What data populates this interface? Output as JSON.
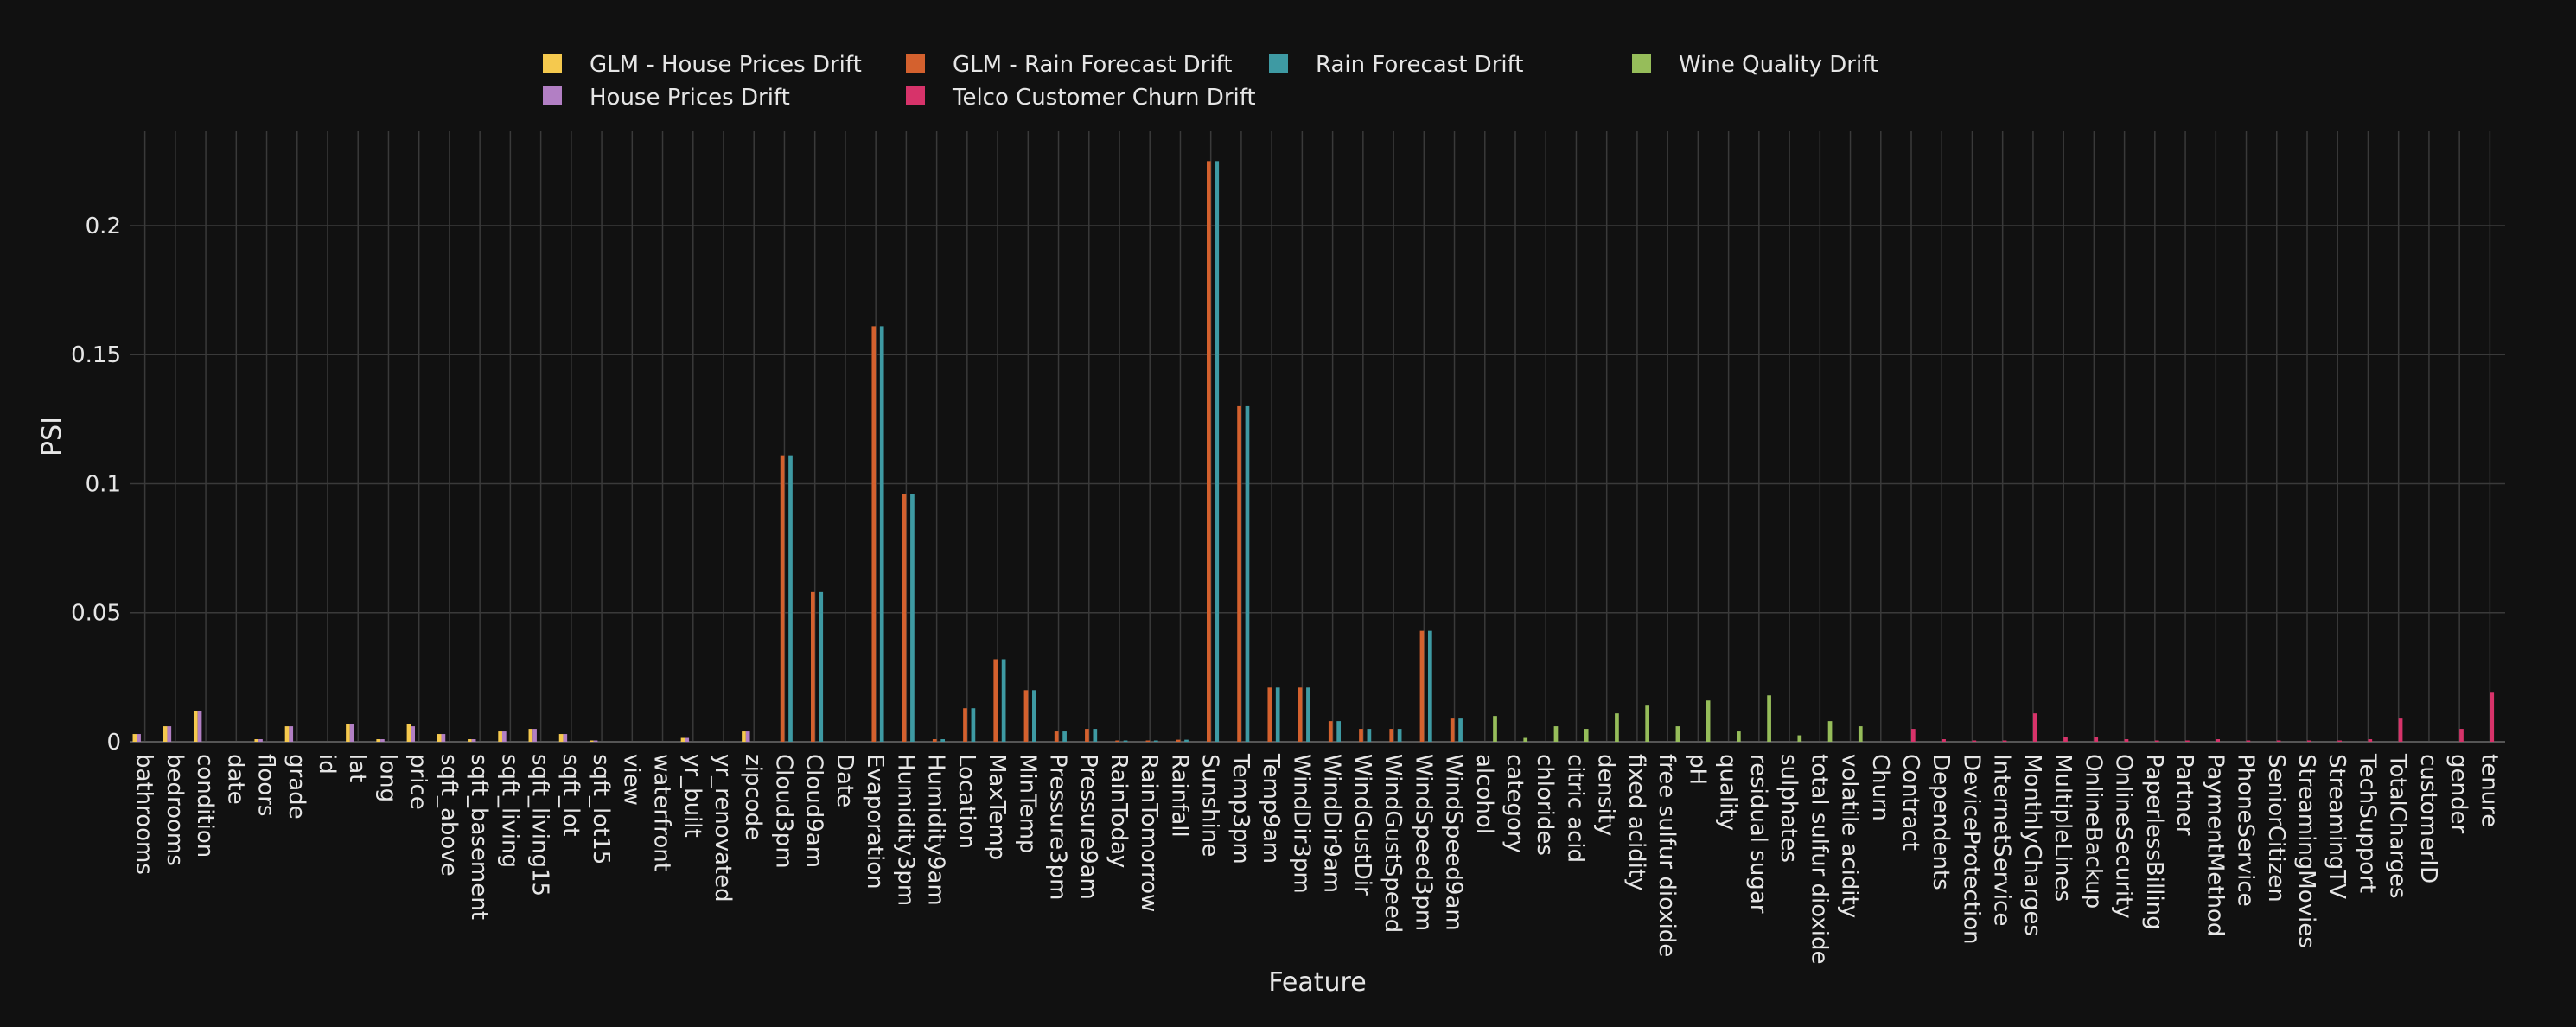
{
  "chart_data": {
    "type": "bar",
    "title": "",
    "xlabel": "Feature",
    "ylabel": "PSI",
    "ylim": [
      0,
      0.2365
    ],
    "yticks": [
      0,
      0.05,
      0.1,
      0.15,
      0.2
    ],
    "ytick_labels": [
      "0",
      "0.05",
      "0.1",
      "0.15",
      "0.2"
    ],
    "grid": true,
    "legend_position": "top",
    "categories": [
      "bathrooms",
      "bedrooms",
      "condition",
      "date",
      "floors",
      "grade",
      "id",
      "lat",
      "long",
      "price",
      "sqft_above",
      "sqft_basement",
      "sqft_living",
      "sqft_living15",
      "sqft_lot",
      "sqft_lot15",
      "view",
      "waterfront",
      "yr_built",
      "yr_renovated",
      "zipcode",
      "Cloud3pm",
      "Cloud9am",
      "Date",
      "Evaporation",
      "Humidity3pm",
      "Humidity9am",
      "Location",
      "MaxTemp",
      "MinTemp",
      "Pressure3pm",
      "Pressure9am",
      "RainToday",
      "RainTomorrow",
      "Rainfall",
      "Sunshine",
      "Temp3pm",
      "Temp9am",
      "WindDir3pm",
      "WindDir9am",
      "WindGustDir",
      "WindGustSpeed",
      "WindSpeed3pm",
      "WindSpeed9am",
      "alcohol",
      "category",
      "chlorides",
      "citric acid",
      "density",
      "fixed acidity",
      "free sulfur dioxide",
      "pH",
      "quality",
      "residual sugar",
      "sulphates",
      "total sulfur dioxide",
      "volatile acidity",
      "Churn",
      "Contract",
      "Dependents",
      "DeviceProtection",
      "InternetService",
      "MonthlyCharges",
      "MultipleLines",
      "OnlineBackup",
      "OnlineSecurity",
      "PaperlessBilling",
      "Partner",
      "PaymentMethod",
      "PhoneService",
      "SeniorCitizen",
      "StreamingMovies",
      "StreamingTV",
      "TechSupport",
      "TotalCharges",
      "customerID",
      "gender",
      "tenure"
    ],
    "series": [
      {
        "name": "GLM - House Prices Drift",
        "color": "#f5c94e",
        "values": [
          0.003,
          0.006,
          0.012,
          0,
          0.001,
          0.006,
          0,
          0.007,
          0.001,
          0.007,
          0.003,
          0.001,
          0.004,
          0.005,
          0.003,
          0.0005,
          0,
          0,
          0.0015,
          0,
          0.004,
          0,
          0,
          0,
          0,
          0,
          0,
          0,
          0,
          0,
          0,
          0,
          0,
          0,
          0,
          0,
          0,
          0,
          0,
          0,
          0,
          0,
          0,
          0,
          0,
          0,
          0,
          0,
          0,
          0,
          0,
          0,
          0,
          0,
          0,
          0,
          0,
          0,
          0,
          0,
          0,
          0,
          0,
          0,
          0,
          0,
          0,
          0,
          0,
          0,
          0,
          0,
          0,
          0,
          0,
          0,
          0,
          0
        ]
      },
      {
        "name": "House Prices Drift",
        "color": "#b27fc4",
        "values": [
          0.003,
          0.006,
          0.012,
          0,
          0.001,
          0.006,
          0,
          0.007,
          0.001,
          0.006,
          0.003,
          0.001,
          0.004,
          0.005,
          0.003,
          0.0005,
          0,
          0,
          0.0015,
          0,
          0.004,
          0,
          0,
          0,
          0,
          0,
          0,
          0,
          0,
          0,
          0,
          0,
          0,
          0,
          0,
          0,
          0,
          0,
          0,
          0,
          0,
          0,
          0,
          0,
          0,
          0,
          0,
          0,
          0,
          0,
          0,
          0,
          0,
          0,
          0,
          0,
          0,
          0,
          0,
          0,
          0,
          0,
          0,
          0,
          0,
          0,
          0,
          0,
          0,
          0,
          0,
          0,
          0,
          0,
          0,
          0,
          0,
          0
        ]
      },
      {
        "name": "GLM - Rain Forecast Drift",
        "color": "#d4612e",
        "values": [
          0,
          0,
          0,
          0,
          0,
          0,
          0,
          0,
          0,
          0,
          0,
          0,
          0,
          0,
          0,
          0,
          0,
          0,
          0,
          0,
          0,
          0.111,
          0.058,
          0,
          0.161,
          0.096,
          0.001,
          0.013,
          0.032,
          0.02,
          0.004,
          0.005,
          0.0005,
          0.0005,
          0.0008,
          0.225,
          0.13,
          0.021,
          0.021,
          0.008,
          0.005,
          0.005,
          0.043,
          0.009,
          0,
          0,
          0,
          0,
          0,
          0,
          0,
          0,
          0,
          0,
          0,
          0,
          0,
          0,
          0,
          0,
          0,
          0,
          0,
          0,
          0,
          0,
          0,
          0,
          0,
          0,
          0,
          0,
          0,
          0,
          0,
          0,
          0,
          0
        ]
      },
      {
        "name": "Telco Customer Churn Drift",
        "color": "#d7336a",
        "values": [
          0,
          0,
          0,
          0,
          0,
          0,
          0,
          0,
          0,
          0,
          0,
          0,
          0,
          0,
          0,
          0,
          0,
          0,
          0,
          0,
          0,
          0,
          0,
          0,
          0,
          0,
          0,
          0,
          0,
          0,
          0,
          0,
          0,
          0,
          0,
          0,
          0,
          0,
          0,
          0,
          0,
          0,
          0,
          0,
          0,
          0,
          0,
          0,
          0,
          0,
          0,
          0,
          0,
          0,
          0,
          0,
          0,
          0,
          0.005,
          0.001,
          0.0005,
          0.0005,
          0.011,
          0.002,
          0.002,
          0.001,
          0.0005,
          0.0005,
          0.001,
          0.0005,
          0.0005,
          0.0005,
          0.0005,
          0.001,
          0.009,
          0,
          0.005,
          0.019
        ]
      },
      {
        "name": "Rain Forecast Drift",
        "color": "#3e9aa3",
        "values": [
          0,
          0,
          0,
          0,
          0,
          0,
          0,
          0,
          0,
          0,
          0,
          0,
          0,
          0,
          0,
          0,
          0,
          0,
          0,
          0,
          0,
          0.111,
          0.058,
          0,
          0.161,
          0.096,
          0.001,
          0.013,
          0.032,
          0.02,
          0.004,
          0.005,
          0.0005,
          0.0005,
          0.0008,
          0.225,
          0.13,
          0.021,
          0.021,
          0.008,
          0.005,
          0.005,
          0.043,
          0.009,
          0,
          0,
          0,
          0,
          0,
          0,
          0,
          0,
          0,
          0,
          0,
          0,
          0,
          0,
          0,
          0,
          0,
          0,
          0,
          0,
          0,
          0,
          0,
          0,
          0,
          0,
          0,
          0,
          0,
          0,
          0,
          0,
          0,
          0
        ]
      },
      {
        "name": "Wine Quality Drift",
        "color": "#96bd5a",
        "values": [
          0,
          0,
          0,
          0,
          0,
          0,
          0,
          0,
          0,
          0,
          0,
          0,
          0,
          0,
          0,
          0,
          0,
          0,
          0,
          0,
          0,
          0,
          0,
          0,
          0,
          0,
          0,
          0,
          0,
          0,
          0,
          0,
          0,
          0,
          0,
          0,
          0,
          0,
          0,
          0,
          0,
          0,
          0,
          0,
          0.01,
          0.0015,
          0.006,
          0.005,
          0.011,
          0.014,
          0.006,
          0.016,
          0.004,
          0.018,
          0.0025,
          0.008,
          0.006,
          0,
          0,
          0,
          0,
          0,
          0,
          0,
          0,
          0,
          0,
          0,
          0,
          0,
          0,
          0,
          0,
          0,
          0,
          0,
          0,
          0
        ]
      }
    ],
    "legend_layout": [
      [
        "GLM - House Prices Drift",
        "GLM - Rain Forecast Drift",
        "Rain Forecast Drift",
        "Wine Quality Drift"
      ],
      [
        "House Prices Drift",
        "Telco Customer Churn Drift"
      ]
    ]
  }
}
